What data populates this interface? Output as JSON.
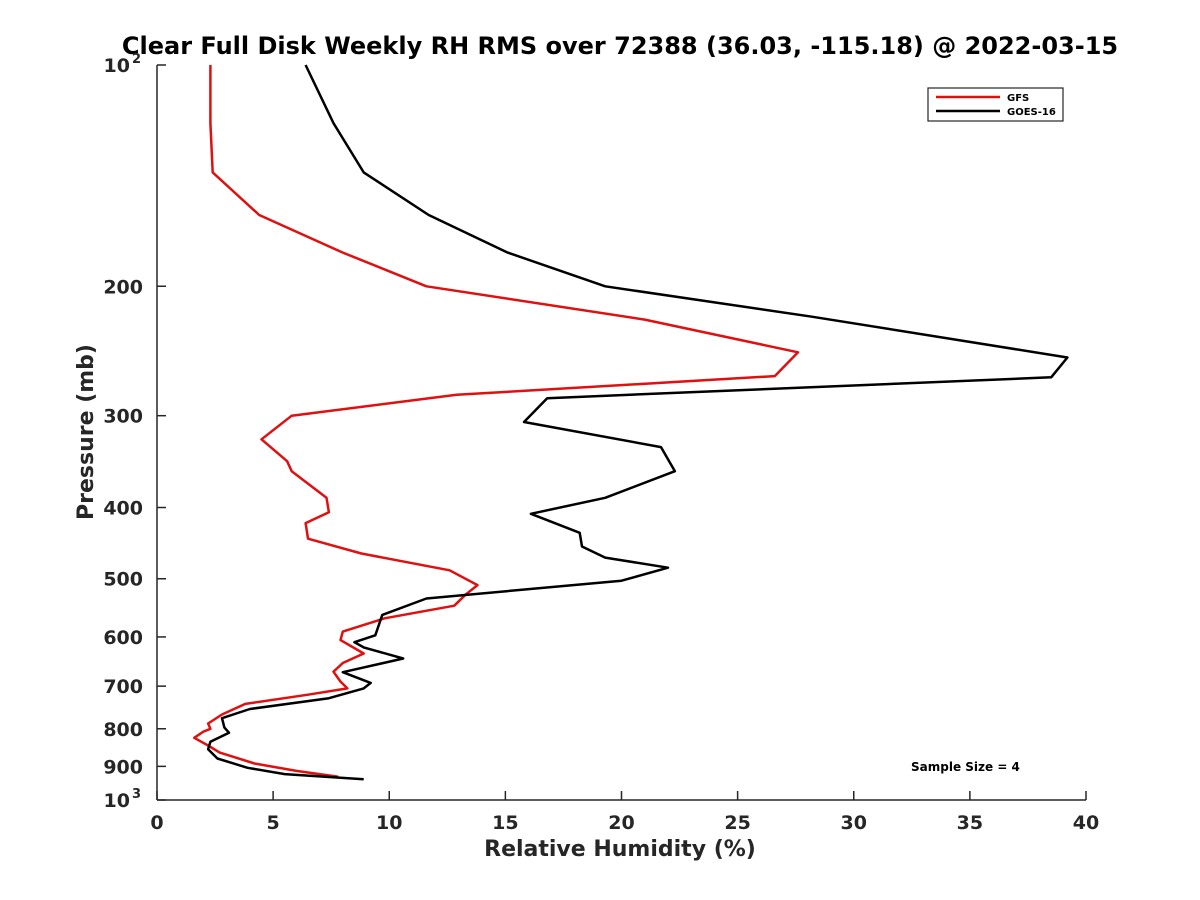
{
  "chart_data": {
    "type": "line",
    "title": "Clear Full Disk Weekly RH RMS over 72388 (36.03, -115.18) @ 2022-03-15",
    "xlabel": "Relative Humidity (%)",
    "ylabel": "Pressure (mb)",
    "xlim": [
      0,
      40
    ],
    "ylim": [
      100,
      1000
    ],
    "y_scale": "log",
    "y_reversed": true,
    "x_ticks": [
      "0",
      "5",
      "10",
      "15",
      "20",
      "25",
      "30",
      "35",
      "40"
    ],
    "y_ticks": [
      {
        "value": 100,
        "base": "10",
        "exp": "2"
      },
      {
        "value": 200,
        "label": "200"
      },
      {
        "value": 300,
        "label": "300"
      },
      {
        "value": 400,
        "label": "400"
      },
      {
        "value": 500,
        "label": "500"
      },
      {
        "value": 600,
        "label": "600"
      },
      {
        "value": 700,
        "label": "700"
      },
      {
        "value": 800,
        "label": "800"
      },
      {
        "value": 900,
        "label": "900"
      },
      {
        "value": 1000,
        "base": "10",
        "exp": "3"
      }
    ],
    "grid": false,
    "legend_position": "top-right",
    "series": [
      {
        "name": "GFS",
        "color": "#e01010",
        "x": [
          7.8,
          6.0,
          4.2,
          2.7,
          2.2,
          1.6,
          2.0,
          2.3,
          2.2,
          2.8,
          3.8,
          6.5,
          8.2,
          7.9,
          7.6,
          8.0,
          8.9,
          7.9,
          8.0,
          9.8,
          12.8,
          13.3,
          13.8,
          12.6,
          8.8,
          6.5,
          6.4,
          7.4,
          7.3,
          5.8,
          5.6,
          4.5,
          5.8,
          12.9,
          26.6,
          27.6,
          21.0,
          11.6,
          8.0,
          4.4,
          2.4,
          2.3,
          2.3
        ],
        "y": [
          930,
          913,
          892,
          862,
          843,
          823,
          807,
          800,
          787,
          765,
          740,
          719,
          705,
          690,
          669,
          651,
          632,
          606,
          590,
          566,
          544,
          525,
          510,
          487,
          462,
          441,
          420,
          406,
          388,
          357,
          346,
          323,
          300,
          281,
          265,
          246,
          222,
          200,
          180,
          160,
          140,
          120,
          100
        ]
      },
      {
        "name": "GOES-16",
        "color": "#000000",
        "x": [
          8.9,
          5.5,
          3.9,
          2.6,
          2.2,
          2.3,
          3.1,
          2.9,
          2.8,
          4.0,
          7.4,
          8.9,
          9.2,
          8.0,
          10.6,
          8.9,
          8.5,
          9.4,
          9.7,
          11.6,
          20.0,
          22.0,
          19.3,
          18.3,
          18.2,
          16.1,
          19.3,
          22.3,
          21.7,
          15.8,
          16.8,
          38.5,
          39.2,
          28.2,
          19.3,
          15.1,
          11.7,
          8.9,
          7.6,
          6.4
        ],
        "y": [
          937,
          922,
          904,
          878,
          853,
          833,
          810,
          797,
          774,
          752,
          727,
          705,
          693,
          670,
          642,
          620,
          610,
          597,
          560,
          532,
          503,
          483,
          468,
          452,
          433,
          408,
          388,
          357,
          331,
          306,
          284,
          266,
          250,
          220,
          200,
          180,
          160,
          140,
          120,
          100
        ]
      }
    ],
    "annotation": "Sample Size = 4"
  }
}
